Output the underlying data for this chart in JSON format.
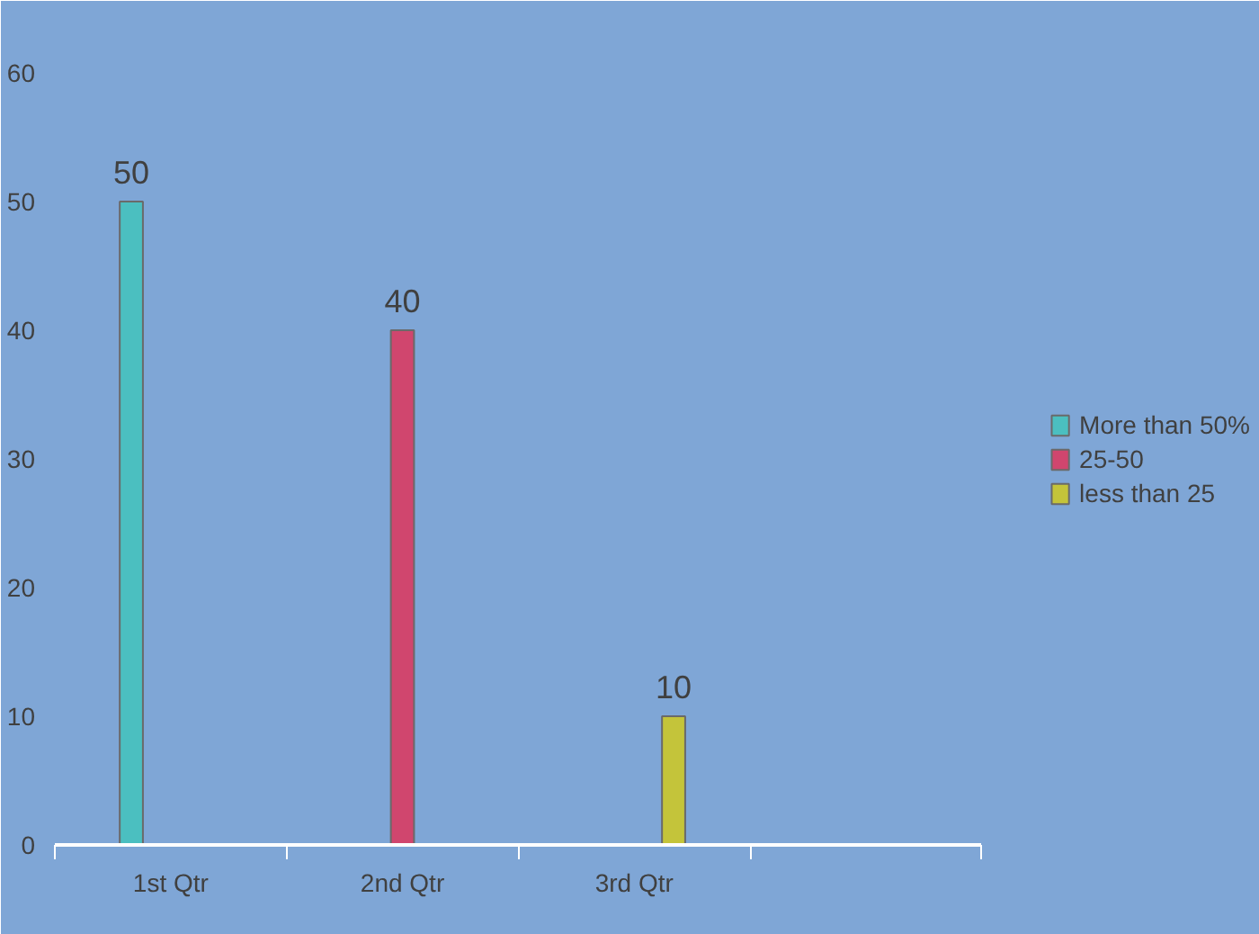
{
  "chart_data": {
    "type": "bar",
    "categories": [
      "1st Qtr",
      "2nd Qtr",
      "3rd Qtr",
      null
    ],
    "series": [
      {
        "name": "More than 50%",
        "color": "#4bbfc0",
        "values": [
          50,
          null,
          null,
          null
        ]
      },
      {
        "name": "25-50",
        "color": "#d0466e",
        "values": [
          null,
          40,
          null,
          null
        ]
      },
      {
        "name": "less than 25",
        "color": "#c4c43a",
        "values": [
          null,
          null,
          10,
          null
        ]
      }
    ],
    "ylim": [
      0,
      60
    ],
    "yticks": [
      0,
      10,
      20,
      30,
      40,
      50,
      60
    ],
    "grid": false,
    "legend": "right",
    "data_labels": true
  }
}
